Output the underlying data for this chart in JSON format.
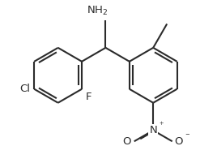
{
  "bg_color": "#ffffff",
  "bond_color": "#2b2b2b",
  "lw": 1.5,
  "figsize": [
    2.68,
    1.96
  ],
  "dpi": 100,
  "xlim": [
    -3.0,
    3.2
  ],
  "ylim": [
    -3.2,
    2.2
  ]
}
